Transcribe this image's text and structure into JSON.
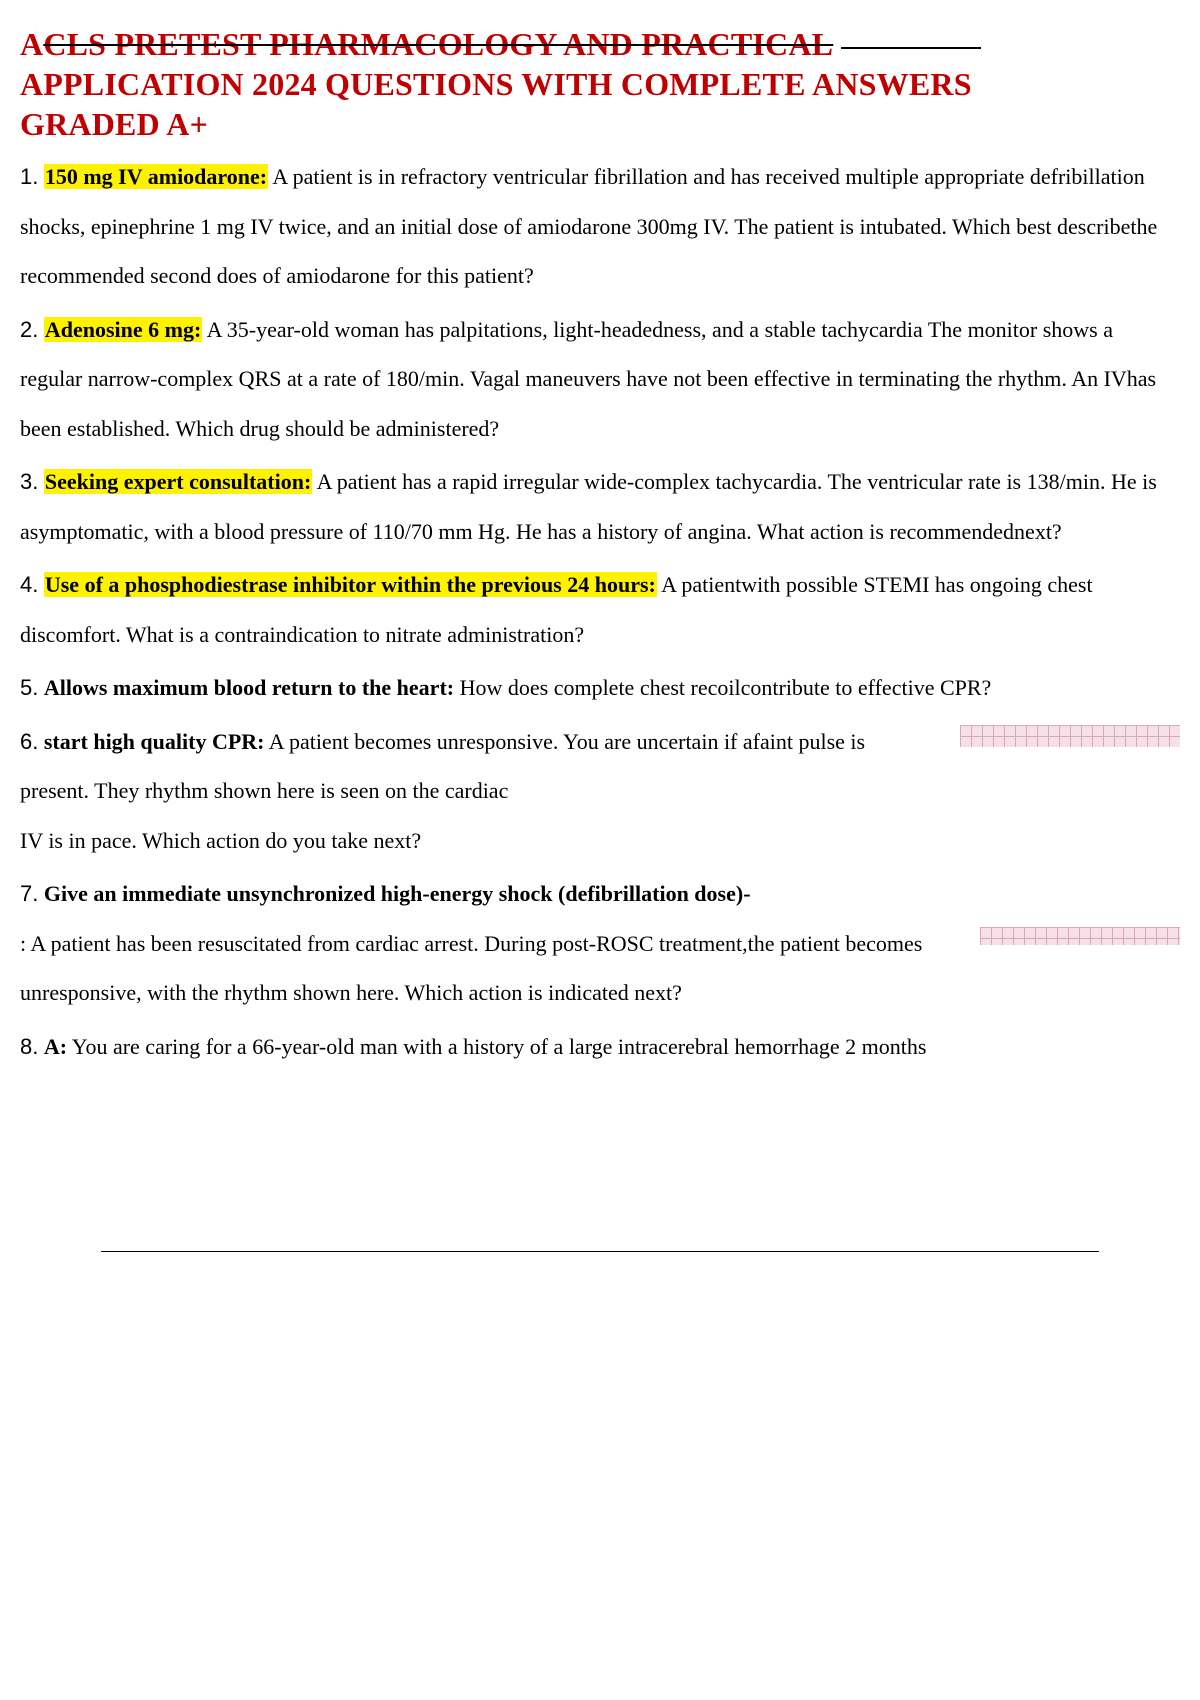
{
  "colors": {
    "title": "#c00000",
    "highlight": "#fff200",
    "text": "#000000",
    "background": "#ffffff",
    "strike": "#000000",
    "ecg_bg": "#f6dfe6",
    "ecg_grid": "#d9a9b8"
  },
  "typography": {
    "title_fontsize": 32,
    "body_fontsize": 22,
    "font_family": "Times New Roman",
    "number_font_family": "Arial",
    "line_height": 2.25
  },
  "title": {
    "line1_strike": "CLS PRETEST PHARMACOLOGY AND PRACTICAL",
    "line1_prefix": "A",
    "line2": "APPLICATION 2024 QUESTIONS WITH COMPLETE ANSWERS",
    "line3": "GRADED A+"
  },
  "items": [
    {
      "num": "1.",
      "answer": "150 mg IV amiodarone:",
      "highlight": true,
      "question": " A patient is in refractory ventricular fibrillation and has received multiple appropriate defribillation shocks, epinephrine 1 mg IV twice, and an initial dose of amiodarone 300mg IV. The patient is intubated. Which best describethe recommended second does of amiodarone for this patient?"
    },
    {
      "num": "2.",
      "answer": "Adenosine 6 mg:",
      "highlight": true,
      "question": " A 35-year-old woman has palpitations, light-headedness, and a stable tachycardia The monitor shows a regular narrow-complex QRS at a rate of 180/min. Vagal maneuvers have not been effective in terminating the rhythm. An IVhas been established. Which drug should be administered?"
    },
    {
      "num": "3.",
      "answer": "Seeking expert consultation:",
      "highlight": true,
      "question": " A patient has a rapid irregular wide-complex tachycardia. The ventricular rate is 138/min. He is asymptomatic, with a blood pressure of 110/70 mm Hg. He has a history of angina. What action is recommendednext?"
    },
    {
      "num": "4.",
      "answer": "Use of a phosphodiestrase inhibitor within the previous 24 hours:",
      "highlight": true,
      "question": " A patientwith possible STEMI has ongoing chest discomfort. What is a contraindication to nitrate administration?"
    },
    {
      "num": "5.",
      "answer": "Allows maximum blood return to the heart:",
      "highlight": false,
      "question": " How does complete chest recoilcontribute to effective CPR?"
    },
    {
      "num": "6.",
      "answer": "start high quality CPR:",
      "highlight": false,
      "question_part1": " A patient becomes unresponsive. You are uncertain if afaint pulse is ",
      "question_part2": "present. They rhythm shown here is seen on the cardiac",
      "question_part3": "IV is in pace. Which action do you take next?",
      "ecg": true
    },
    {
      "num": "7.",
      "answer": "Give an immediate unsynchronized high-energy shock (defibrillation dose)-",
      "highlight": false,
      "question_part1": ": A patient has been resuscitated from cardiac arrest. During post-ROSC treatment,the patient becomes ",
      "question_part2": "unresponsive, with the rhythm shown here. Which action is indicated next?",
      "ecg": true
    },
    {
      "num": "8.",
      "answer": "A:",
      "highlight": false,
      "question": " You are caring for a 66-year-old man with a history of a large intracerebral hemorrhage 2 months"
    }
  ]
}
